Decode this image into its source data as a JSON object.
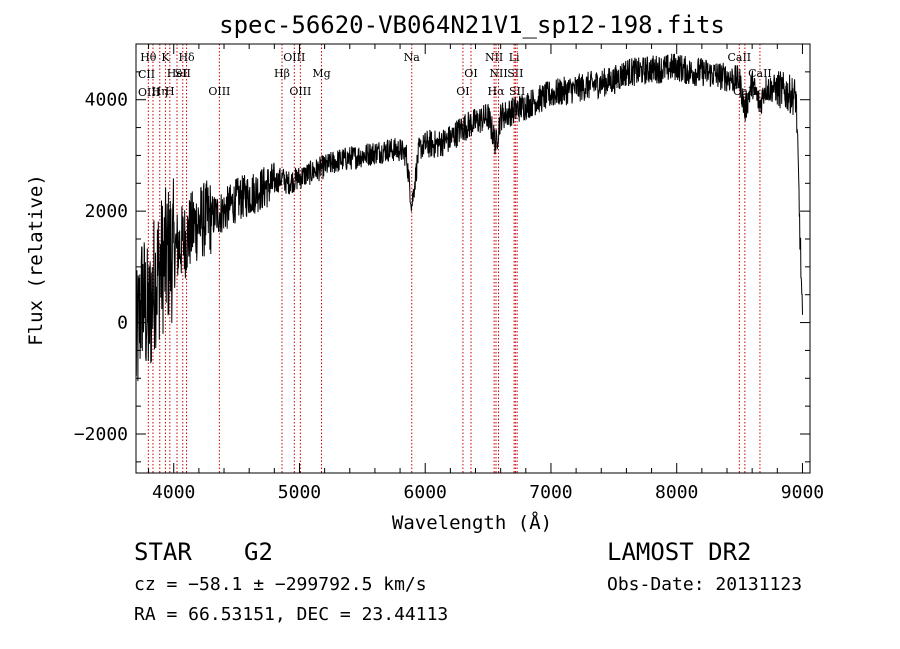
{
  "chart_data": {
    "type": "line",
    "title": "spec-56620-VB064N21V1_sp12-198.fits",
    "xlabel": "Wavelength (Å)",
    "ylabel": "Flux (relative)",
    "xlim": [
      3700,
      9060
    ],
    "ylim": [
      -2700,
      5000
    ],
    "xticks": [
      4000,
      5000,
      6000,
      7000,
      8000,
      9000
    ],
    "xtick_labels": [
      "4000",
      "5000",
      "6000",
      "7000",
      "8000",
      "9000"
    ],
    "yticks": [
      -2000,
      0,
      2000,
      4000
    ],
    "ytick_labels": [
      "−2000",
      "0",
      "2000",
      "4000"
    ],
    "grid": false,
    "line_color": "#000000",
    "marker_color": "#cc0000",
    "series": [
      {
        "x": [
          3700,
          3750,
          3800,
          3850,
          3900,
          3950,
          4000,
          4050,
          4100,
          4150,
          4200,
          4300,
          4400,
          4500,
          4600,
          4700,
          4800,
          4861,
          4900,
          5000,
          5100,
          5200,
          5300,
          5400,
          5500,
          5600,
          5700,
          5800,
          5850,
          5893,
          5950,
          6000,
          6100,
          6200,
          6300,
          6400,
          6500,
          6563,
          6600,
          6700,
          6800,
          6900,
          7000,
          7100,
          7200,
          7300,
          7400,
          7500,
          7600,
          7700,
          7800,
          7900,
          8000,
          8100,
          8200,
          8300,
          8400,
          8500,
          8542,
          8600,
          8662,
          8700,
          8800,
          8900,
          8950,
          9000
        ],
        "y": [
          -500,
          500,
          0,
          800,
          1000,
          1200,
          1300,
          1400,
          1500,
          1700,
          1800,
          1900,
          2000,
          2200,
          2300,
          2400,
          2500,
          2600,
          2500,
          2600,
          2700,
          2800,
          2900,
          2950,
          3000,
          3050,
          3100,
          3100,
          3000,
          2100,
          3100,
          3200,
          3200,
          3300,
          3500,
          3600,
          3700,
          3200,
          3700,
          3800,
          3900,
          4000,
          4100,
          4150,
          4200,
          4250,
          4300,
          4350,
          4500,
          4500,
          4550,
          4550,
          4600,
          4500,
          4500,
          4450,
          4400,
          4350,
          3800,
          4300,
          3900,
          4200,
          4200,
          4100,
          4050,
          0
        ]
      }
    ],
    "lines": [
      {
        "wl": 3798,
        "label": "Hθ",
        "row": 1
      },
      {
        "wl": 3835,
        "label": "",
        "row": 0
      },
      {
        "wl": 3889,
        "label": "Hη",
        "row": 3
      },
      {
        "wl": 3934,
        "label": "K",
        "row": 1
      },
      {
        "wl": 3969,
        "label": "H",
        "row": 3
      },
      {
        "wl": 4026,
        "label": "HeI",
        "row": 2
      },
      {
        "wl": 4072,
        "label": "SII",
        "row": 2
      },
      {
        "wl": 4102,
        "label": "Hδ",
        "row": 1
      },
      {
        "wl": 4363,
        "label": "OIII",
        "row": 3
      },
      {
        "wl": 4861,
        "label": "Hβ",
        "row": 2
      },
      {
        "wl": 4959,
        "label": "OIII",
        "row": 1
      },
      {
        "wl": 5007,
        "label": "OIII",
        "row": 3
      },
      {
        "wl": 5175,
        "label": "Mg",
        "row": 2
      },
      {
        "wl": 5893,
        "label": "Na",
        "row": 1
      },
      {
        "wl": 6300,
        "label": "OI",
        "row": 3
      },
      {
        "wl": 6364,
        "label": "OI",
        "row": 2
      },
      {
        "wl": 6548,
        "label": "NII",
        "row": 1
      },
      {
        "wl": 6563,
        "label": "Hα",
        "row": 3
      },
      {
        "wl": 6583,
        "label": "NII",
        "row": 2
      },
      {
        "wl": 6707,
        "label": "Li",
        "row": 1
      },
      {
        "wl": 6717,
        "label": "SII",
        "row": 2
      },
      {
        "wl": 6731,
        "label": "SII",
        "row": 3
      },
      {
        "wl": 8498,
        "label": "CaII",
        "row": 1
      },
      {
        "wl": 8542,
        "label": "CaII",
        "row": 3
      },
      {
        "wl": 8662,
        "label": "CaII",
        "row": 2
      }
    ],
    "left_labels": [
      {
        "label": "CII",
        "row": 2
      },
      {
        "label": "OIII",
        "row": 3
      }
    ]
  },
  "info": {
    "class_label": "STAR",
    "subclass": "G2",
    "survey": "LAMOST DR2",
    "cz": "cz = −58.1 ± −299792.5 km/s",
    "obsdate": "Obs-Date: 20131123",
    "coords": "RA =  66.53151, DEC =  23.44113"
  }
}
